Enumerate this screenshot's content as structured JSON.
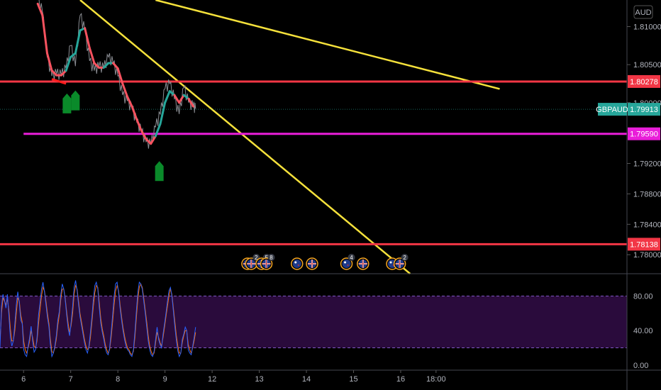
{
  "chart_data": [
    {
      "type": "line",
      "symbol": "GBPAUD",
      "currency": "AUD",
      "price_axis_ticks": [
        "1.81000",
        "1.80500",
        "1.80000",
        "1.79200",
        "1.78800",
        "1.78400",
        "1.78000"
      ],
      "ylim": [
        1.7775,
        1.8135
      ],
      "xlim": [
        5.5,
        18.8
      ],
      "time_axis": [
        {
          "label": "6",
          "x": 6
        },
        {
          "label": "7",
          "x": 7
        },
        {
          "label": "8",
          "x": 8
        },
        {
          "label": "9",
          "x": 9
        },
        {
          "label": "12",
          "x": 10
        },
        {
          "label": "13",
          "x": 11
        },
        {
          "label": "14",
          "x": 12
        },
        {
          "label": "15",
          "x": 13
        },
        {
          "label": "16",
          "x": 14
        },
        {
          "label": "18:00",
          "x": 14.75
        }
      ],
      "horizontal_levels": [
        {
          "label": "1.80278",
          "price": 1.80278,
          "color": "#f23645",
          "tag_text": "#ffffff"
        },
        {
          "label": "1.79590",
          "price": 1.7959,
          "color": "#e91ed9",
          "tag_text": "#ffffff"
        },
        {
          "label": "1.78138",
          "price": 1.78138,
          "color": "#f23645",
          "tag_text": "#ffffff"
        }
      ],
      "current_price": {
        "symbol": "GBPAUD",
        "label": "1.79913",
        "price": 1.79913,
        "color": "#26a69a"
      },
      "trendlines": [
        {
          "color": "#f5e13b",
          "from": [
            7.2,
            1.8135
          ],
          "to": [
            14.2,
            1.7775
          ]
        },
        {
          "color": "#f5e13b",
          "from": [
            8.8,
            1.8135
          ],
          "to": [
            16.1,
            1.8018
          ]
        }
      ],
      "price_series": {
        "x": [
          6.3,
          6.4,
          6.5,
          6.6,
          6.7,
          6.8,
          6.9,
          7.0,
          7.1,
          7.2,
          7.3,
          7.4,
          7.5,
          7.6,
          7.7,
          7.8,
          7.9,
          8.0,
          8.1,
          8.2,
          8.3,
          8.4,
          8.5,
          8.6,
          8.7,
          8.8,
          8.9,
          9.0,
          9.1,
          9.2,
          9.3,
          9.4,
          9.5,
          9.6,
          9.65
        ],
        "close": [
          1.8135,
          1.812,
          1.806,
          1.8035,
          1.8038,
          1.8036,
          1.8045,
          1.8075,
          1.8048,
          1.8115,
          1.8095,
          1.8055,
          1.8042,
          1.8048,
          1.8045,
          1.806,
          1.8052,
          1.8035,
          1.801,
          1.8002,
          1.7992,
          1.7975,
          1.7962,
          1.7948,
          1.7945,
          1.7968,
          1.7985,
          1.8018,
          1.8025,
          1.8005,
          1.7985,
          1.802,
          1.8,
          1.7995,
          1.7992
        ]
      },
      "moving_average": {
        "up_color": "#26a69a",
        "down_color": "#f7525f",
        "x": [
          6.3,
          6.4,
          6.5,
          6.6,
          6.7,
          6.8,
          6.9,
          7.0,
          7.1,
          7.2,
          7.3,
          7.4,
          7.5,
          7.6,
          7.7,
          7.8,
          7.9,
          8.0,
          8.1,
          8.2,
          8.3,
          8.4,
          8.5,
          8.6,
          8.7,
          8.8,
          8.9,
          9.0,
          9.1,
          9.2,
          9.3,
          9.4,
          9.5,
          9.6
        ],
        "y": [
          1.813,
          1.8115,
          1.8065,
          1.8042,
          1.8036,
          1.8036,
          1.8042,
          1.806,
          1.8065,
          1.8095,
          1.8098,
          1.8072,
          1.8052,
          1.8046,
          1.8046,
          1.8052,
          1.8052,
          1.8045,
          1.8025,
          1.8008,
          1.7995,
          1.7978,
          1.7963,
          1.7952,
          1.7946,
          1.7956,
          1.7972,
          1.8,
          1.8015,
          1.801,
          1.8,
          1.801,
          1.8005,
          1.7995
        ],
        "direction": [
          "d",
          "d",
          "d",
          "d",
          "d",
          "d",
          "u",
          "u",
          "u",
          "u",
          "d",
          "d",
          "d",
          "d",
          "u",
          "u",
          "d",
          "d",
          "d",
          "d",
          "d",
          "d",
          "d",
          "d",
          "d",
          "u",
          "u",
          "u",
          "u",
          "d",
          "d",
          "u",
          "d",
          "d"
        ]
      },
      "buy_arrows": [
        {
          "x": 6.92,
          "price": 1.8012
        },
        {
          "x": 7.1,
          "price": 1.8016
        },
        {
          "x": 8.88,
          "price": 1.7923
        }
      ],
      "red_marker": {
        "from": [
          6.6,
          1.8031
        ],
        "to": [
          6.9,
          1.8025
        ]
      },
      "events": [
        {
          "x": 10.75,
          "flag": "gb"
        },
        {
          "x": 10.83,
          "flag": "gb",
          "count": "2"
        },
        {
          "x": 11.05,
          "flag": "gb",
          "count": "5"
        },
        {
          "x": 11.15,
          "flag": "gb",
          "count": "8"
        },
        {
          "x": 11.8,
          "flag": "au"
        },
        {
          "x": 12.12,
          "flag": "gb"
        },
        {
          "x": 12.85,
          "flag": "au",
          "count": "4"
        },
        {
          "x": 13.2,
          "flag": "gb"
        },
        {
          "x": 13.82,
          "flag": "au"
        },
        {
          "x": 13.98,
          "flag": "gb",
          "count": "2"
        }
      ]
    },
    {
      "type": "line",
      "indicator": "stochastic",
      "ylim": [
        -5,
        105
      ],
      "y_axis_ticks": [
        "80.00",
        "40.00",
        "0.00"
      ],
      "band": {
        "upper": 80,
        "lower": 20,
        "fill": "#2a0b3c",
        "line_color": "#7e57c2"
      },
      "k_color": "#2962ff",
      "d_color": "#ff6d00",
      "k_values": [
        20,
        68,
        82,
        75,
        66,
        82,
        58,
        32,
        22,
        28,
        48,
        70,
        85,
        72,
        52,
        48,
        18,
        12,
        10,
        22,
        32,
        45,
        28,
        15,
        18,
        32,
        58,
        72,
        88,
        96,
        85,
        70,
        55,
        44,
        24,
        10,
        14,
        22,
        34,
        52,
        62,
        82,
        94,
        88,
        76,
        58,
        42,
        34,
        50,
        68,
        90,
        98,
        86,
        70,
        56,
        46,
        36,
        26,
        18,
        14,
        22,
        38,
        56,
        76,
        92,
        96,
        88,
        66,
        48,
        38,
        30,
        20,
        14,
        12,
        20,
        38,
        58,
        80,
        94,
        96,
        84,
        66,
        52,
        40,
        30,
        22,
        18,
        16,
        12,
        10,
        18,
        38,
        62,
        84,
        96,
        94,
        88,
        74,
        60,
        44,
        28,
        18,
        12,
        10,
        16,
        30,
        44,
        30,
        24,
        20,
        36,
        48,
        60,
        74,
        86,
        90,
        80,
        62,
        44,
        28,
        16,
        10,
        14,
        30,
        36,
        44,
        40,
        18,
        14,
        12,
        22,
        32,
        44
      ],
      "d_values": [
        28,
        60,
        78,
        74,
        70,
        76,
        64,
        42,
        28,
        28,
        40,
        60,
        78,
        74,
        58,
        50,
        28,
        18,
        14,
        20,
        28,
        40,
        32,
        22,
        20,
        28,
        48,
        64,
        80,
        90,
        86,
        74,
        60,
        48,
        30,
        16,
        14,
        20,
        30,
        46,
        58,
        76,
        88,
        88,
        78,
        62,
        48,
        38,
        46,
        60,
        82,
        92,
        88,
        74,
        60,
        50,
        40,
        30,
        22,
        18,
        20,
        32,
        50,
        68,
        84,
        92,
        90,
        72,
        54,
        42,
        34,
        24,
        18,
        14,
        18,
        32,
        50,
        70,
        86,
        92,
        86,
        70,
        56,
        44,
        34,
        26,
        20,
        18,
        14,
        12,
        16,
        32,
        54,
        76,
        90,
        94,
        90,
        78,
        64,
        50,
        34,
        22,
        16,
        12,
        14,
        26,
        38,
        32,
        26,
        22,
        32,
        44,
        56,
        68,
        80,
        88,
        82,
        66,
        50,
        34,
        22,
        14,
        14,
        26,
        34,
        40,
        40,
        24,
        18,
        14,
        20,
        28,
        38
      ]
    }
  ]
}
